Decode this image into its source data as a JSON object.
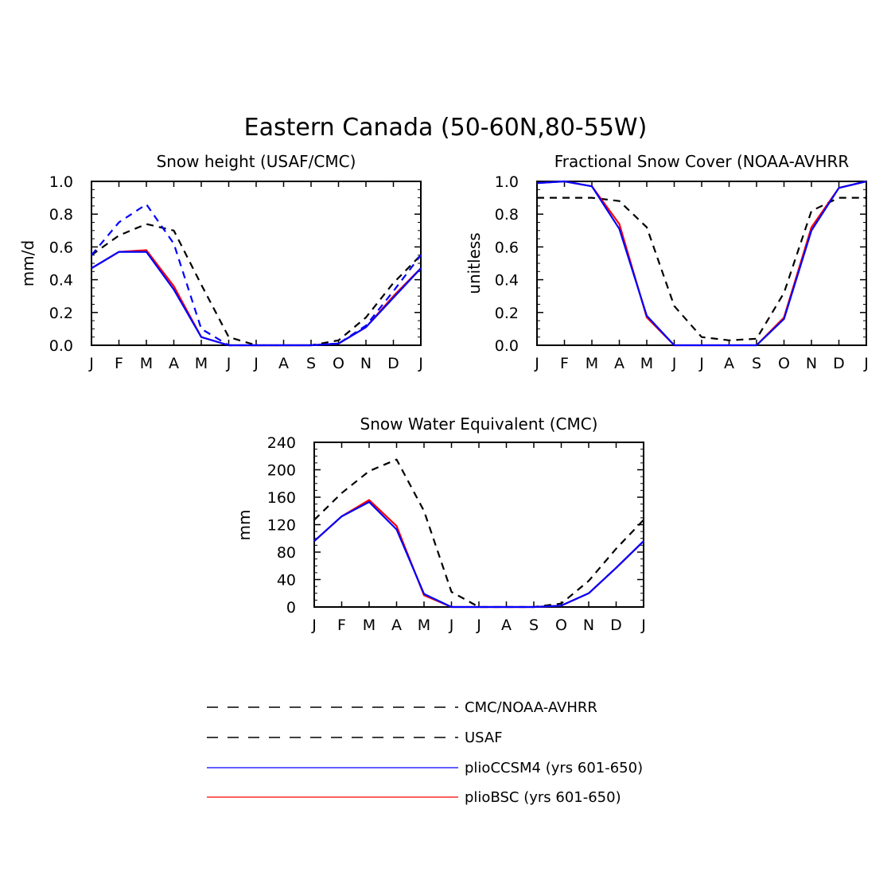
{
  "main_title": "Eastern Canada (50-60N,80-55W)",
  "colors": {
    "obs": "#000000",
    "usaf": "#0000ff",
    "ccsm4": "#0000ff",
    "bsc": "#ff0000"
  },
  "chart_data": [
    {
      "type": "line",
      "title": "Snow height (USAF/CMC)",
      "xlabel": "",
      "ylabel": "mm/d",
      "ylim": [
        0,
        1
      ],
      "yticks": [
        0,
        0.2,
        0.4,
        0.6,
        0.8,
        1.0
      ],
      "ytick_labels": [
        "0.0",
        "0.2",
        "0.4",
        "0.6",
        "0.8",
        "1.0"
      ],
      "categories": [
        "J",
        "F",
        "M",
        "A",
        "M",
        "J",
        "J",
        "A",
        "S",
        "O",
        "N",
        "D",
        "J"
      ],
      "series": [
        {
          "name": "CMC",
          "style": "dashed",
          "color": "#000000",
          "values": [
            0.55,
            0.67,
            0.74,
            0.7,
            0.37,
            0.05,
            0.0,
            0.0,
            0.0,
            0.03,
            0.17,
            0.38,
            0.55
          ]
        },
        {
          "name": "USAF",
          "style": "dashed",
          "color": "#0000ff",
          "values": [
            0.55,
            0.75,
            0.86,
            0.62,
            0.1,
            0.0,
            0.0,
            0.0,
            0.0,
            0.01,
            0.12,
            0.33,
            0.55
          ]
        },
        {
          "name": "plioBSC (yrs 601-650)",
          "style": "solid",
          "color": "#ff0000",
          "values": [
            0.47,
            0.57,
            0.58,
            0.36,
            0.05,
            0.0,
            0.0,
            0.0,
            0.0,
            0.01,
            0.11,
            0.3,
            0.47
          ]
        },
        {
          "name": "plioCCSM4 (yrs 601-650)",
          "style": "solid",
          "color": "#0000ff",
          "values": [
            0.47,
            0.57,
            0.57,
            0.34,
            0.05,
            0.0,
            0.0,
            0.0,
            0.0,
            0.01,
            0.11,
            0.29,
            0.47
          ]
        }
      ]
    },
    {
      "type": "line",
      "title": "Fractional Snow Cover (NOAA-AVHRR",
      "xlabel": "",
      "ylabel": "unitless",
      "ylim": [
        0,
        1
      ],
      "yticks": [
        0,
        0.2,
        0.4,
        0.6,
        0.8,
        1.0
      ],
      "ytick_labels": [
        "0.0",
        "0.2",
        "0.4",
        "0.6",
        "0.8",
        "1.0"
      ],
      "categories": [
        "J",
        "F",
        "M",
        "A",
        "M",
        "J",
        "J",
        "A",
        "S",
        "O",
        "N",
        "D",
        "J"
      ],
      "series": [
        {
          "name": "NOAA-AVHRR",
          "style": "dashed",
          "color": "#000000",
          "values": [
            0.9,
            0.9,
            0.9,
            0.88,
            0.72,
            0.24,
            0.05,
            0.03,
            0.04,
            0.32,
            0.82,
            0.9,
            0.9
          ]
        },
        {
          "name": "plioBSC (yrs 601-650)",
          "style": "solid",
          "color": "#ff0000",
          "values": [
            0.99,
            1.0,
            0.97,
            0.74,
            0.17,
            0.0,
            0.0,
            0.0,
            0.0,
            0.17,
            0.72,
            0.96,
            1.0
          ]
        },
        {
          "name": "plioCCSM4 (yrs 601-650)",
          "style": "solid",
          "color": "#0000ff",
          "values": [
            0.99,
            1.0,
            0.97,
            0.71,
            0.18,
            0.0,
            0.0,
            0.0,
            0.0,
            0.16,
            0.7,
            0.96,
            1.0
          ]
        }
      ]
    },
    {
      "type": "line",
      "title": "Snow Water Equivalent (CMC)",
      "xlabel": "",
      "ylabel": "mm",
      "ylim": [
        0,
        240
      ],
      "yticks": [
        0,
        40,
        80,
        120,
        160,
        200,
        240
      ],
      "ytick_labels": [
        "0",
        "40",
        "80",
        "120",
        "160",
        "200",
        "240"
      ],
      "categories": [
        "J",
        "F",
        "M",
        "A",
        "M",
        "J",
        "J",
        "A",
        "S",
        "O",
        "N",
        "D",
        "J"
      ],
      "series": [
        {
          "name": "CMC",
          "style": "dashed",
          "color": "#000000",
          "values": [
            127,
            166,
            198,
            215,
            140,
            22,
            0,
            0,
            0,
            5,
            38,
            85,
            127
          ]
        },
        {
          "name": "plioBSC (yrs 601-650)",
          "style": "solid",
          "color": "#ff0000",
          "values": [
            96,
            132,
            156,
            118,
            17,
            0,
            0,
            0,
            0,
            2,
            20,
            57,
            96
          ]
        },
        {
          "name": "plioCCSM4 (yrs 601-650)",
          "style": "solid",
          "color": "#0000ff",
          "values": [
            96,
            132,
            153,
            113,
            19,
            0,
            0,
            0,
            0,
            2,
            20,
            57,
            96
          ]
        }
      ]
    }
  ],
  "legend": [
    {
      "label": "CMC/NOAA-AVHRR",
      "color": "#000000",
      "style": "dashed"
    },
    {
      "label": "USAF",
      "color": "#000000",
      "style": "dashed"
    },
    {
      "label": "plioCCSM4 (yrs 601-650)",
      "color": "#0000ff",
      "style": "solid"
    },
    {
      "label": "plioBSC (yrs 601-650)",
      "color": "#ff0000",
      "style": "solid"
    }
  ]
}
